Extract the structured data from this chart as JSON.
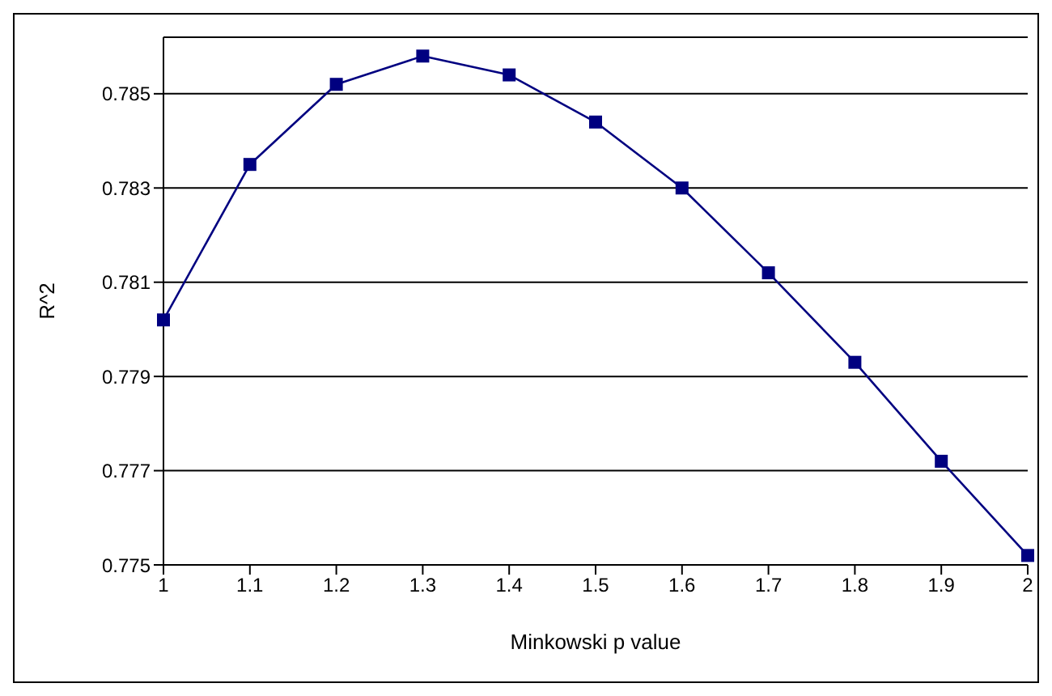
{
  "chart_data": {
    "type": "line",
    "xlabel": "Minkowski p value",
    "ylabel": "R^2",
    "categories": [
      "1",
      "1.1",
      "1.2",
      "1.3",
      "1.4",
      "1.5",
      "1.6",
      "1.7",
      "1.8",
      "1.9",
      "2"
    ],
    "series": [
      {
        "color": "#000080",
        "values": [
          0.7802,
          0.7835,
          0.7852,
          0.7858,
          0.7854,
          0.7844,
          0.783,
          0.7812,
          0.7793,
          0.7772,
          0.7752
        ]
      }
    ],
    "ylim": [
      0.775,
      0.7862
    ],
    "yticks": [
      0.775,
      0.777,
      0.779,
      0.781,
      0.783,
      0.785
    ],
    "grid": "y",
    "legend": false,
    "marker": "square",
    "line_style": "solid"
  }
}
